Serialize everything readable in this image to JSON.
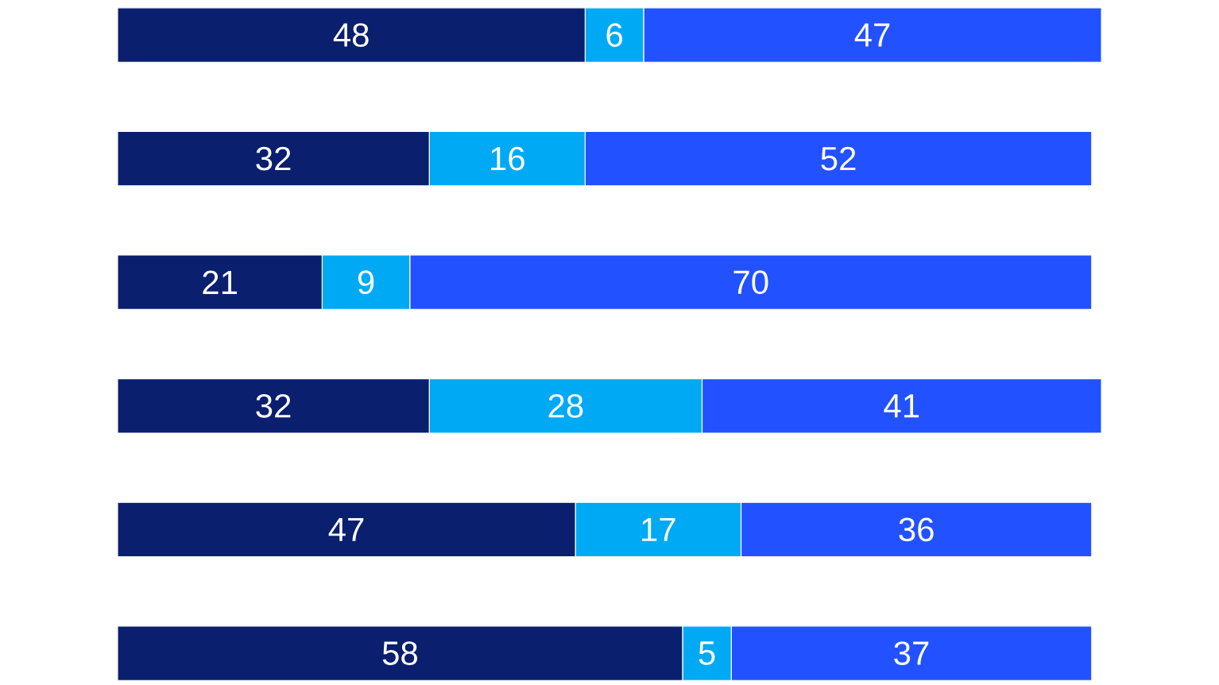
{
  "chart_data": {
    "type": "bar",
    "orientation": "horizontal",
    "stacked": true,
    "data_labels": true,
    "categories": [
      null,
      null,
      null,
      null,
      null,
      null
    ],
    "series": [
      {
        "color": "#0a1f6e",
        "values": [
          48,
          32,
          21,
          32,
          47,
          58
        ]
      },
      {
        "color": "#00a9f4",
        "values": [
          6,
          16,
          9,
          28,
          17,
          5
        ]
      },
      {
        "color": "#2251ff",
        "values": [
          47,
          52,
          70,
          41,
          36,
          37
        ]
      }
    ]
  }
}
